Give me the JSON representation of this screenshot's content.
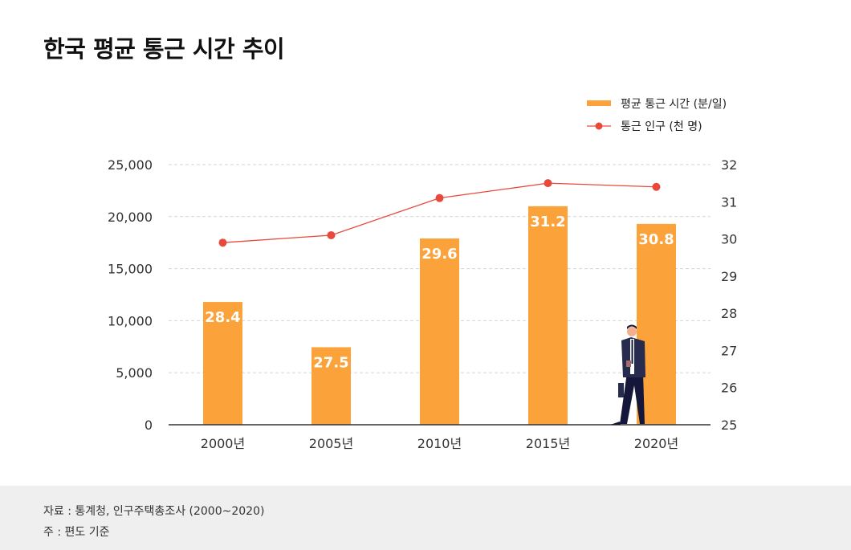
{
  "title": "한국 평균 통근 시간 추이",
  "chart_data": {
    "type": "bar",
    "categories": [
      "2000년",
      "2005년",
      "2010년",
      "2015년",
      "2020년"
    ],
    "left_axis": {
      "range": [
        0,
        25000
      ],
      "ticks": [
        "0",
        "5,000",
        "10,000",
        "15,000",
        "20,000",
        "25,000"
      ],
      "tick_values": [
        0,
        5000,
        10000,
        15000,
        20000,
        25000
      ]
    },
    "right_axis": {
      "range": [
        25,
        32
      ],
      "ticks": [
        "25",
        "26",
        "27",
        "28",
        "29",
        "30",
        "31",
        "32"
      ],
      "tick_values": [
        25,
        26,
        27,
        28,
        29,
        30,
        31,
        32
      ]
    },
    "series": [
      {
        "name": "평균 통근 시간 (분/일)",
        "type": "bar",
        "axis": "left",
        "values": [
          11800,
          7450,
          17900,
          21000,
          19300
        ],
        "labels": [
          "28.4",
          "27.5",
          "29.6",
          "31.2",
          "30.8"
        ],
        "color": "#fba23a"
      },
      {
        "name": "통근 인구 (천 명)",
        "type": "line",
        "axis": "right",
        "values": [
          29.9,
          30.1,
          31.1,
          31.5,
          31.4
        ],
        "color": "#e9493a"
      }
    ],
    "grid": true,
    "legend": "top-right"
  },
  "footer": {
    "source": "자료 : 통계청, 인구주택총조사 (2000~2020)",
    "note": "주 : 편도 기준"
  }
}
